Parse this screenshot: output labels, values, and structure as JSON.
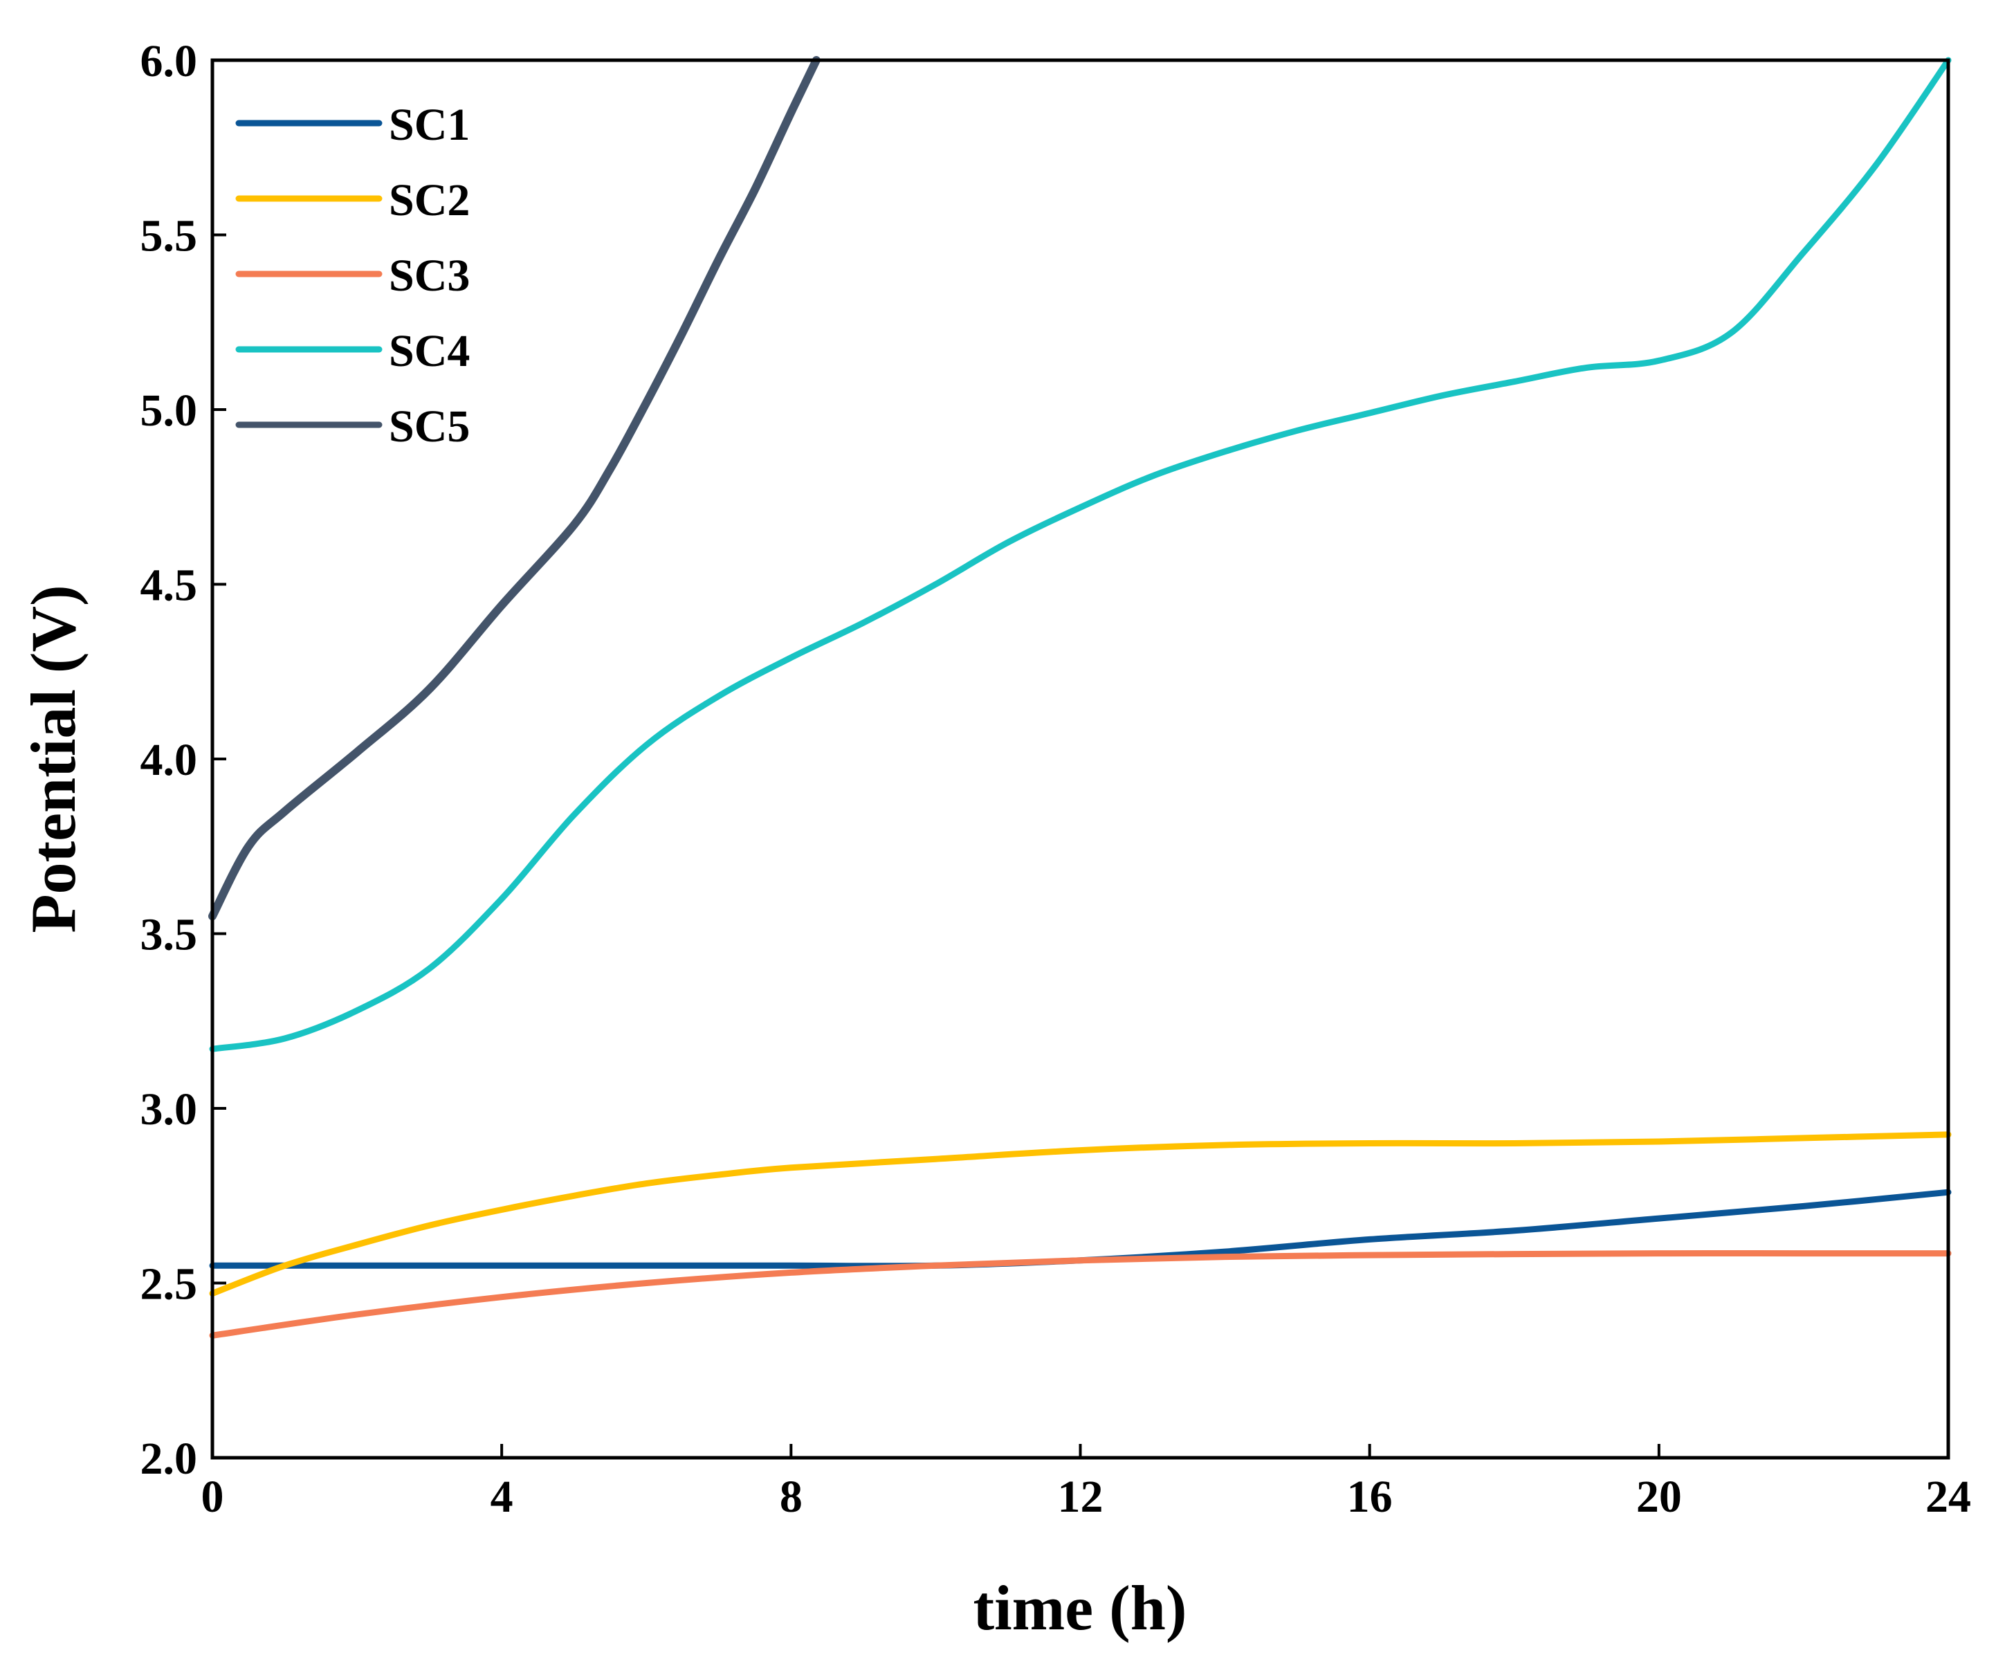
{
  "chart_data": {
    "type": "line",
    "title": "",
    "xlabel": "time (h)",
    "ylabel": "Potential (V)",
    "xlim": [
      0,
      24
    ],
    "ylim": [
      2.0,
      6.0
    ],
    "xticks": [
      0,
      4,
      8,
      12,
      16,
      20,
      24
    ],
    "yticks": [
      2.0,
      2.5,
      3.0,
      3.5,
      4.0,
      4.5,
      5.0,
      5.5,
      6.0
    ],
    "xtick_labels": [
      "0",
      "4",
      "8",
      "12",
      "16",
      "20",
      "24"
    ],
    "ytick_labels": [
      "2.0",
      "2.5",
      "3.0",
      "3.5",
      "4.0",
      "4.5",
      "5.0",
      "5.5",
      "6.0"
    ],
    "grid": false,
    "legend_position": "top-left",
    "series": [
      {
        "name": "SC1",
        "color": "#0A5596",
        "x": [
          0,
          2,
          4,
          6,
          8,
          10,
          12,
          14,
          16,
          18,
          20,
          22,
          24
        ],
        "y": [
          2.55,
          2.55,
          2.55,
          2.55,
          2.55,
          2.55,
          2.565,
          2.59,
          2.625,
          2.65,
          2.685,
          2.72,
          2.76
        ]
      },
      {
        "name": "SC2",
        "color": "#FFC000",
        "x": [
          0,
          1,
          2,
          3,
          4,
          5,
          6,
          7,
          8,
          10,
          12,
          14,
          16,
          18,
          20,
          22,
          24
        ],
        "y": [
          2.47,
          2.55,
          2.61,
          2.665,
          2.71,
          2.75,
          2.785,
          2.81,
          2.83,
          2.855,
          2.88,
          2.895,
          2.9,
          2.9,
          2.905,
          2.915,
          2.925
        ]
      },
      {
        "name": "SC3",
        "color": "#F47C53",
        "x": [
          0,
          2,
          4,
          6,
          8,
          10,
          12,
          14,
          16,
          18,
          20,
          22,
          24
        ],
        "y": [
          2.35,
          2.41,
          2.46,
          2.5,
          2.53,
          2.55,
          2.565,
          2.575,
          2.58,
          2.583,
          2.585,
          2.585,
          2.585
        ]
      },
      {
        "name": "SC4",
        "color": "#19C3C3",
        "x": [
          0,
          1,
          2,
          3,
          4,
          5,
          6,
          7,
          8,
          9,
          10,
          11,
          12,
          13,
          14,
          15,
          16,
          17,
          18,
          19,
          20,
          21,
          22,
          23,
          24
        ],
        "y": [
          3.17,
          3.2,
          3.28,
          3.4,
          3.6,
          3.84,
          4.04,
          4.18,
          4.29,
          4.39,
          4.5,
          4.62,
          4.72,
          4.81,
          4.88,
          4.94,
          4.99,
          5.04,
          5.08,
          5.12,
          5.14,
          5.22,
          5.45,
          5.7,
          6.0
        ]
      },
      {
        "name": "SC5",
        "color": "#44546A",
        "x": [
          0,
          0.5,
          1,
          2,
          3,
          4,
          5,
          5.5,
          6,
          6.5,
          7,
          7.5,
          8,
          8.35
        ],
        "y": [
          3.55,
          3.75,
          3.85,
          4.02,
          4.2,
          4.44,
          4.67,
          4.83,
          5.02,
          5.22,
          5.43,
          5.63,
          5.85,
          6.0
        ]
      }
    ]
  }
}
